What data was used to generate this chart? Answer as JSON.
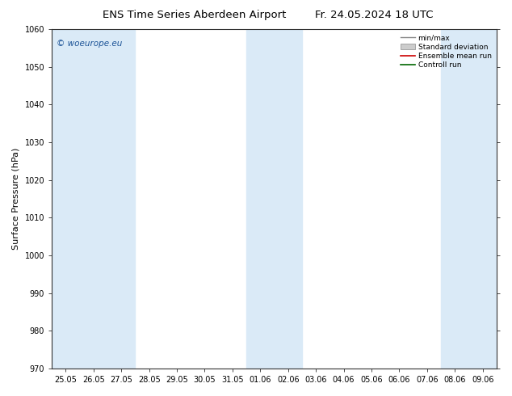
{
  "title": "ENS Time Series Aberdeen Airport",
  "title2": "Fr. 24.05.2024 18 UTC",
  "ylabel": "Surface Pressure (hPa)",
  "ylim": [
    970,
    1060
  ],
  "yticks": [
    970,
    980,
    990,
    1000,
    1010,
    1020,
    1030,
    1040,
    1050,
    1060
  ],
  "xtick_labels": [
    "25.05",
    "26.05",
    "27.05",
    "28.05",
    "29.05",
    "30.05",
    "31.05",
    "01.06",
    "02.06",
    "03.06",
    "04.06",
    "05.06",
    "06.06",
    "07.06",
    "08.06",
    "09.06"
  ],
  "shade_color": "#daeaf7",
  "background_color": "#ffffff",
  "watermark": "© woeurope.eu",
  "legend_entries": [
    "min/max",
    "Standard deviation",
    "Ensemble mean run",
    "Controll run"
  ],
  "title_fontsize": 9.5,
  "tick_fontsize": 7,
  "ylabel_fontsize": 8
}
